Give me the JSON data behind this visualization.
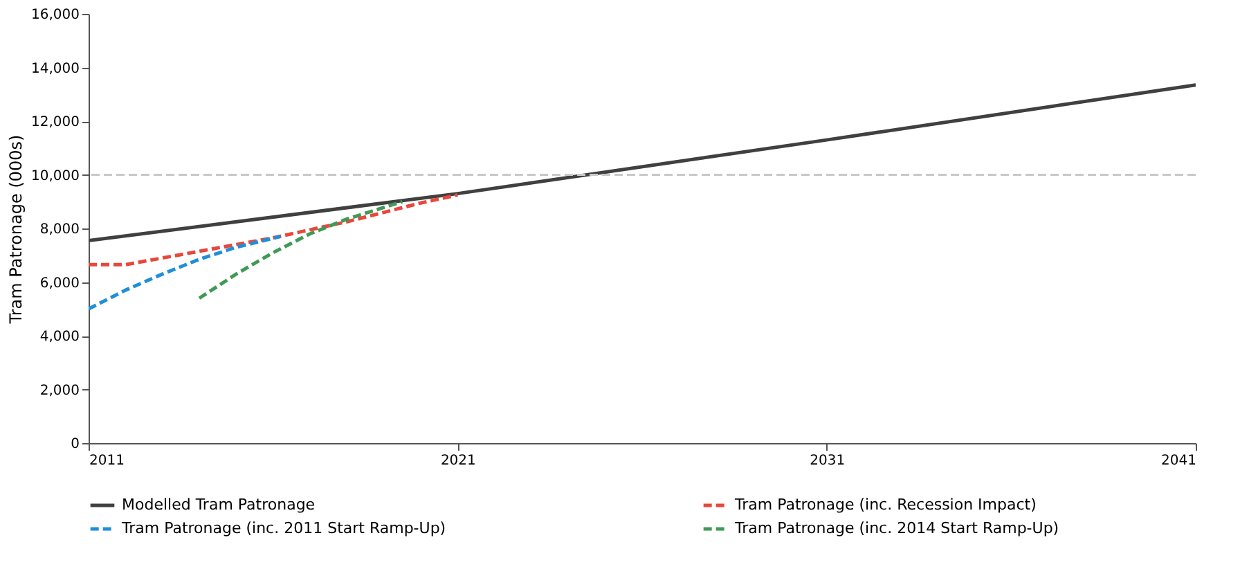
{
  "chart_data": {
    "type": "line",
    "ylabel": "Tram Patronage (000s)",
    "xlim": [
      2011,
      2041
    ],
    "xticks": [
      2011,
      2021,
      2031,
      2041
    ],
    "ylim": [
      0,
      16000
    ],
    "yticks": [
      0,
      {
        "value": 2000,
        "label": "2,000"
      },
      {
        "value": 4000,
        "label": "4,000"
      },
      {
        "value": 6000,
        "label": "6,000"
      },
      {
        "value": 8000,
        "label": "8,000"
      },
      {
        "value": 10000,
        "label": "10,000"
      },
      {
        "value": 12000,
        "label": "12,000"
      },
      {
        "value": 14000,
        "label": "14,000"
      },
      {
        "value": 16000,
        "label": "16,000"
      }
    ],
    "grid": false,
    "legend": "bottom",
    "ref_lines": [
      {
        "axis": "y",
        "value": 10000,
        "color": "#c8c8c8",
        "line_style": "dashed"
      }
    ],
    "series": [
      {
        "name": "Modelled Tram Patronage",
        "color": "#404040",
        "line_style": "solid",
        "x": [
          2011,
          2021,
          2031,
          2041
        ],
        "values": [
          7550,
          9300,
          11300,
          13350
        ]
      },
      {
        "name": "Tram Patronage (inc. Recession Impact)",
        "color": "#e8473c",
        "line_style": "dashed",
        "x": [
          2011,
          2012,
          2013,
          2014,
          2016,
          2018,
          2020,
          2021
        ],
        "values": [
          6650,
          6650,
          6900,
          7150,
          7650,
          8250,
          8950,
          9250
        ]
      },
      {
        "name": "Tram Patronage (inc. 2011 Start Ramp-Up)",
        "color": "#1f8fd8",
        "line_style": "dashed",
        "x": [
          2011,
          2012,
          2013,
          2014,
          2015,
          2016.2
        ],
        "values": [
          5000,
          5700,
          6300,
          6850,
          7300,
          7700
        ]
      },
      {
        "name": "Tram Patronage (inc. 2014 Start Ramp-Up)",
        "color": "#3f9a55",
        "line_style": "dashed",
        "x": [
          2014,
          2015,
          2016,
          2017,
          2018,
          2019.5
        ],
        "values": [
          5400,
          6300,
          7100,
          7800,
          8350,
          9000
        ]
      }
    ]
  }
}
